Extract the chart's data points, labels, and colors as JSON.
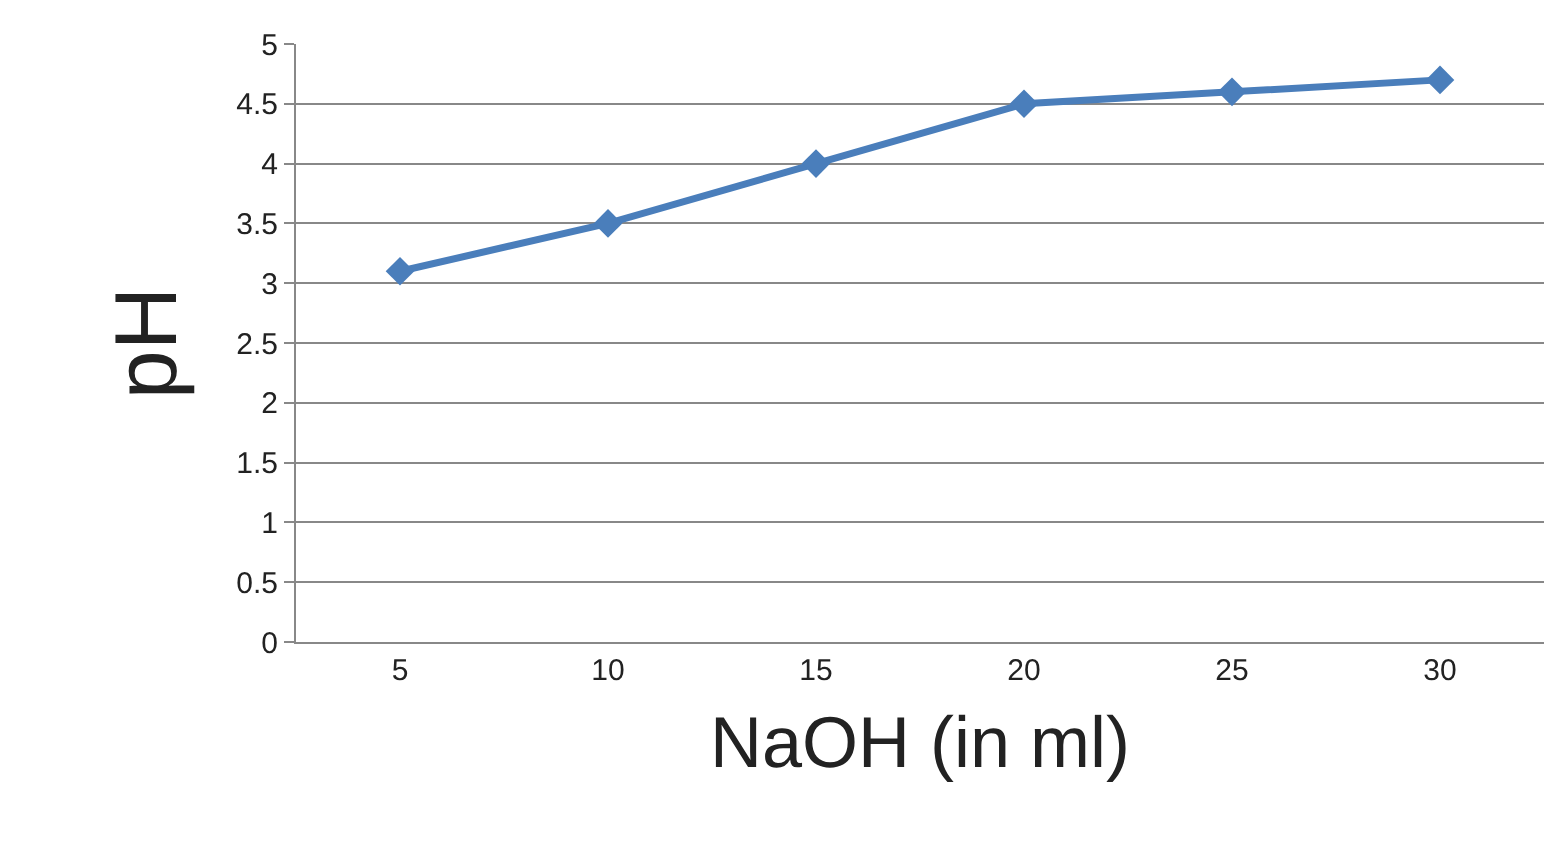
{
  "chart_data": {
    "type": "line",
    "xlabel": "NaOH (in ml)",
    "ylabel": "pH",
    "categories": [
      "5",
      "10",
      "15",
      "20",
      "25",
      "30"
    ],
    "series": [
      {
        "color": "#4a7ebb",
        "values": [
          3.1,
          3.5,
          4.0,
          4.5,
          4.6,
          4.7
        ]
      }
    ],
    "ylim": [
      0,
      5
    ],
    "yticks": [
      0,
      0.5,
      1,
      1.5,
      2,
      2.5,
      3,
      3.5,
      4,
      4.5,
      5
    ],
    "grid": "y",
    "marker": "diamond",
    "line_style": "solid"
  }
}
